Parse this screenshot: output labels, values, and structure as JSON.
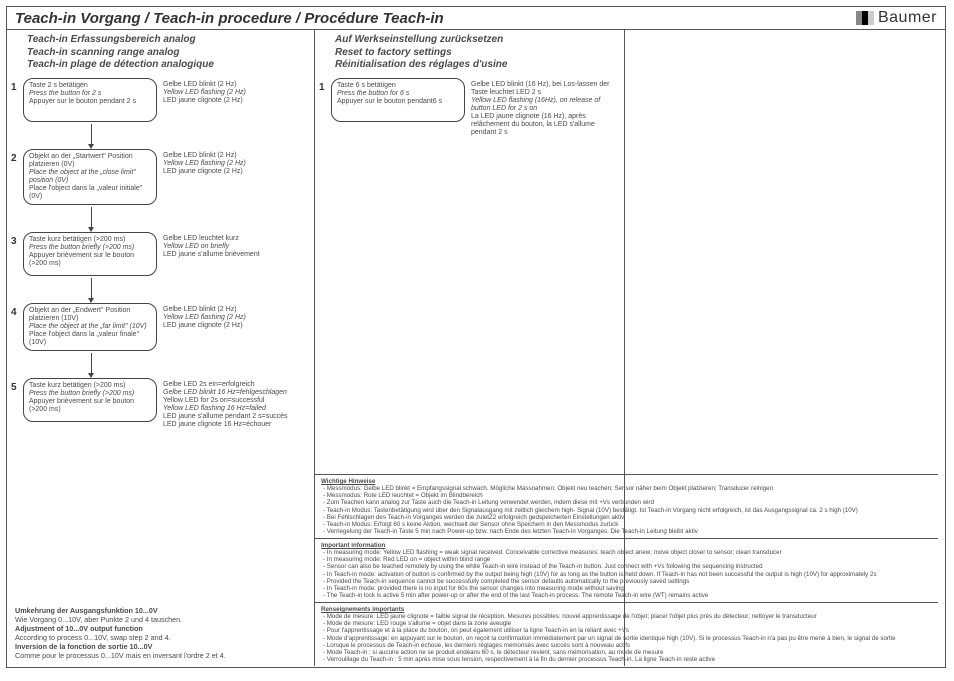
{
  "title": "Teach-in Vorgang / Teach-in procedure / Procédure Teach-in",
  "logo": "Baumer",
  "logo_colors": [
    "#888888",
    "#000000",
    "#cccccc"
  ],
  "left": {
    "header": [
      "Teach-in Erfassungsbereich analog",
      "Teach-in scanning range analog",
      "Teach-in plage de détection analogique"
    ],
    "steps": [
      {
        "num": "1",
        "box": [
          "Taste 2 s betätigen",
          "Press the button for 2 s",
          "Appuyer sur le bouton pendant 2 s"
        ],
        "side": [
          "Gelbe LED blinkt (2 Hz)",
          "Yellow LED flashing (2 Hz)",
          "LED jaune clignote (2 Hz)"
        ]
      },
      {
        "num": "2",
        "box": [
          "Objekt an der „Startwert\" Position platzieren (0V)",
          "Place the object at the „close limit\" position (0V)",
          "Place l'object dans la „valeur initiale\" (0V)"
        ],
        "side": [
          "Gelbe LED blinkt (2 Hz)",
          "Yellow LED flashing (2 Hz)",
          "LED jaune clignote (2 Hz)"
        ]
      },
      {
        "num": "3",
        "box": [
          "Taste kurz betätigen (>200 ms)",
          "Press the button briefly (>200 ms)",
          "Appuyer brièvement sur le bouton (>200 ms)"
        ],
        "side": [
          "Gelbe LED leuchtet kurz",
          "Yellow LED on briefly",
          "LED jaune s'allume brièvement"
        ]
      },
      {
        "num": "4",
        "box": [
          "Objekt an der „Endwert\" Position platzieren (10V)",
          "Place the object at the „far limit\" (10V)",
          "Place l'object dans la „valeur finale\" (10V)"
        ],
        "side": [
          "Gelbe LED blinkt (2 Hz)",
          "Yellow LED flashing (2 Hz)",
          "LED jaune clignote (2 Hz)"
        ]
      },
      {
        "num": "5",
        "box": [
          "Taste kurz betätigen (>200 ms)",
          "Press the button briefly (>200 ms)",
          "Appuyer brièvement sur le bouton (>200 ms)"
        ],
        "side": [
          "Gelbe LED 2s ein=erfolgreich",
          "Gelbe LED blinkt 16 Hz=fehlgeschlagen",
          "Yellow LED for 2s on=successful",
          "Yellow LED flashing 16 Hz=failed",
          "LED jaune s'allume pendant 2 s=succès",
          "LED jaune clignote 16 Hz=échouer"
        ]
      }
    ],
    "notes": [
      {
        "bold": true,
        "text": "Umkehrung der Ausgangsfunktion 10...0V"
      },
      {
        "bold": false,
        "text": "Wie Vorgang 0...10V, aber Punkte 2 und 4 tauschen."
      },
      {
        "bold": true,
        "text": "Adjustment of 10...0V output function"
      },
      {
        "bold": false,
        "text": "According to process 0...10V, swap step 2 and 4."
      },
      {
        "bold": true,
        "text": "Inversion de la fonction de sortie 10...0V"
      },
      {
        "bold": false,
        "text": "Comme pour le processus 0...10V mais en inversant l'ordre 2 et 4."
      }
    ]
  },
  "mid": {
    "header": [
      "Auf Werkseinstellung zurücksetzen",
      "Reset to factory settings",
      "Réinitialisation des réglages d'usine"
    ],
    "steps": [
      {
        "num": "1",
        "box": [
          "Taste 6 s betätigen",
          "Press the button for 6 s",
          "Appuyer sur le bouton pendant6 s"
        ],
        "side": [
          "Gelbe LED blinkt (16 Hz), bei Los-lassen der Taste leuchtet LED 2 s",
          "Yellow LED flashing (16Hz), on release of button LED for 2 s on",
          "La  LED jaune clignote (16 Hz), après relâchement du bouton,  la LED s'allume pendant 2 s"
        ]
      }
    ],
    "info": [
      {
        "head": "Wichtige Hinweise",
        "items": [
          "Messmodus: Gelbe LED blinkt = Empfangssignal schwach. Mögliche Massnahmen: Objekt neu teachen; Sensor näher beim Objekt platzieren; Transducer reinigen",
          "Messmodus: Rote LED leuchtet = Objekt im Blindbereich",
          "Zum Teachen kann analog zur Taste auch die Teach-in Leitung verwendet werden, indem diese mit +Vs verbunden wird",
          "Teach-in Modus: Tastenbetätigung wird über den Signalausgang mit zeitlich gleichem high- Signal (10V) bestätigt. Ist Teach-in Vorgang nicht erfolgreich, ist das Ausgangssignal ca. 2 s high (10V)",
          "Bei Fehlschlagen des Teach-in Vorganges werden die zuletZ2 erfolgreich gedspeicherten Einstellungen aktiv",
          "Teach-in Modus: Erfolgt 60 s keine Aktion, wechselt der Sensor ohne Speichern in den Messmodus zurück",
          "Verriegelung der Teach-in Taste 5 min nach Power-up bzw. nach Ende des letzten Teach-in Vorganges. Die Teach-in Leitung bleibt aktiv"
        ]
      },
      {
        "head": "Important information",
        "items": [
          "In measuring mode: Yellow LED flashing = weak signal received. Conceivable corrective measures: teach object anew; move object closer to sensor; clean transducer",
          "In measuring mode: Red LED on = object within blind range",
          "Sensor can also be teached remotely by using the white Teach-in wire instead of the Teach-in button. Just connect with +Vs following the sequencing instructed",
          "In Teach-in mode: activation of button is confirmed by the output being high (10V) for as long as the button is held down. If Teach-in has not been successful the output is high (10V) for approximately 2s",
          "Provided the Teach-in sequence cannot be successfully completed the sensor defaults automatically to the previously saved settings",
          "In Teach-in mode: provided there is no input for 60s the sensor changes into measuring mode without saving",
          "The Teach-in lock is active 5 min after power-up or after the end of the last Teach-in process. The remote Teach-in wire (WT) remains active"
        ]
      },
      {
        "head": "Renseignements importants",
        "items": [
          "Mode de mesure: LED jaune clignote = faible signal de réception. Mesures possibles: nouvel apprentissage de l'objet; placer l'objet plus près du détecteur; nettoyer le transducteur",
          "Mode de mesure: LED rouge s'allume = objet dans la zone aveugle",
          "Pour l'apprentissage et à la place du bouton, on peut également utiliser la ligne Teach-in en la reliant avec +Vs",
          "Mode d'apprentissage: en appuyant sur le bouton, on reçoit la confirmation immédiatement par un signal de sortie identique high (10V). Si le processus Teach-in n'a pas pu être mené à bien, le signal de sortie",
          "Lorsque le processus de Teach-in échoue, les derniers réglages mémorisés avec succès sont à nouveau actifs",
          "Mode Teach-in : si aucune action ne se produit endéans 60 s, le détecteur  revient, sans mémorisation, au mode de mesure",
          "Verrouillage du Teach-in : 5 min après mise sous tension, respectivement à la fin du dernier processus Teach-in. La ligne Teach-in reste active"
        ]
      }
    ]
  }
}
